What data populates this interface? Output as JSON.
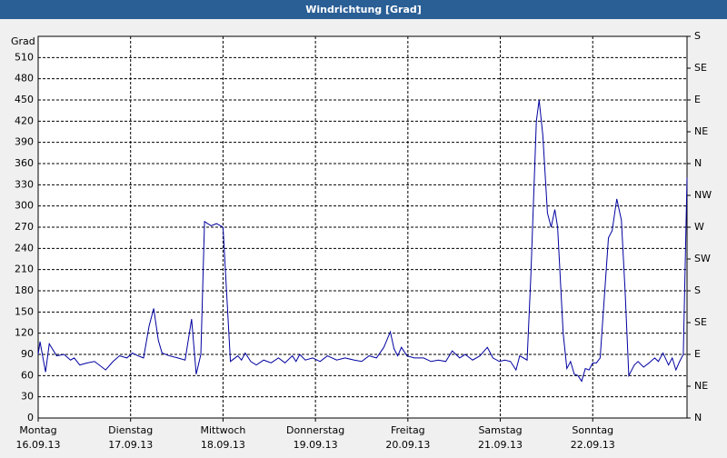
{
  "chart_data": {
    "type": "line",
    "title": "Windrichtung [Grad]",
    "ylabel": "Grad",
    "xlim": [
      0,
      7.02
    ],
    "xticks": [
      {
        "value": 0,
        "label": "Montag\n16.09.13"
      },
      {
        "value": 1,
        "label": "Dienstag\n17.09.13"
      },
      {
        "value": 2,
        "label": "Mittwoch\n18.09.13"
      },
      {
        "value": 3,
        "label": "Donnerstag\n19.09.13"
      },
      {
        "value": 4,
        "label": "Freitag\n20.09.13"
      },
      {
        "value": 5,
        "label": "Samstag\n21.09.13"
      },
      {
        "value": 6,
        "label": "Sonntag\n22.09.13"
      }
    ],
    "ylim": [
      0,
      540
    ],
    "yticks": [
      0,
      30,
      60,
      90,
      120,
      150,
      180,
      210,
      240,
      270,
      300,
      330,
      360,
      390,
      420,
      450,
      480,
      510
    ],
    "y2lim": [
      0,
      540
    ],
    "y2ticks": [
      {
        "value": 0,
        "label": "N"
      },
      {
        "value": 45,
        "label": "NE"
      },
      {
        "value": 90,
        "label": "E"
      },
      {
        "value": 135,
        "label": "SE"
      },
      {
        "value": 180,
        "label": "S"
      },
      {
        "value": 225,
        "label": "SW"
      },
      {
        "value": 270,
        "label": "W"
      },
      {
        "value": 315,
        "label": "NW"
      },
      {
        "value": 360,
        "label": "N"
      },
      {
        "value": 405,
        "label": "NE"
      },
      {
        "value": 450,
        "label": "E"
      },
      {
        "value": 495,
        "label": "SE"
      },
      {
        "value": 540,
        "label": "S"
      }
    ],
    "grid": true,
    "x": [
      0,
      0.02,
      0.08,
      0.12,
      0.2,
      0.28,
      0.35,
      0.39,
      0.45,
      0.53,
      0.61,
      0.73,
      0.81,
      0.88,
      0.96,
      1.02,
      1.08,
      1.14,
      1.2,
      1.25,
      1.3,
      1.34,
      1.42,
      1.51,
      1.59,
      1.66,
      1.71,
      1.76,
      1.8,
      1.87,
      1.93,
      2.0,
      2.08,
      2.16,
      2.2,
      2.24,
      2.3,
      2.36,
      2.44,
      2.52,
      2.6,
      2.67,
      2.75,
      2.79,
      2.83,
      2.89,
      2.97,
      3.05,
      3.13,
      3.23,
      3.32,
      3.42,
      3.5,
      3.58,
      3.66,
      3.74,
      3.81,
      3.85,
      3.89,
      3.93,
      3.99,
      4.07,
      4.17,
      4.25,
      4.33,
      4.41,
      4.48,
      4.56,
      4.62,
      4.7,
      4.78,
      4.86,
      4.92,
      4.99,
      5.05,
      5.11,
      5.17,
      5.21,
      5.29,
      5.33,
      5.39,
      5.42,
      5.46,
      5.51,
      5.55,
      5.59,
      5.62,
      5.68,
      5.72,
      5.76,
      5.8,
      5.84,
      5.88,
      5.92,
      5.96,
      6.0,
      6.04,
      6.08,
      6.17,
      6.21,
      6.26,
      6.31,
      6.35,
      6.39,
      6.45,
      6.49,
      6.55,
      6.61,
      6.67,
      6.71,
      6.76,
      6.82,
      6.86,
      6.9,
      6.94,
      6.98,
      7.02
    ],
    "series": [
      {
        "color": "#0000a0",
        "values": [
          90,
          108,
          65,
          105,
          88,
          90,
          82,
          85,
          75,
          78,
          80,
          68,
          80,
          88,
          85,
          92,
          88,
          85,
          130,
          155,
          110,
          92,
          88,
          85,
          82,
          140,
          62,
          90,
          278,
          272,
          275,
          270,
          80,
          88,
          82,
          92,
          80,
          75,
          82,
          78,
          85,
          78,
          88,
          80,
          90,
          82,
          85,
          80,
          88,
          82,
          85,
          82,
          80,
          88,
          85,
          100,
          122,
          98,
          88,
          100,
          88,
          85,
          85,
          80,
          82,
          80,
          95,
          85,
          90,
          82,
          88,
          100,
          85,
          80,
          82,
          80,
          68,
          88,
          82,
          200,
          420,
          450,
          400,
          290,
          270,
          295,
          270,
          120,
          70,
          80,
          62,
          60,
          52,
          70,
          68,
          78,
          78,
          85,
          255,
          265,
          310,
          280,
          180,
          60,
          75,
          80,
          72,
          78,
          85,
          80,
          92,
          75,
          85,
          68,
          80,
          90,
          340
        ]
      }
    ]
  }
}
